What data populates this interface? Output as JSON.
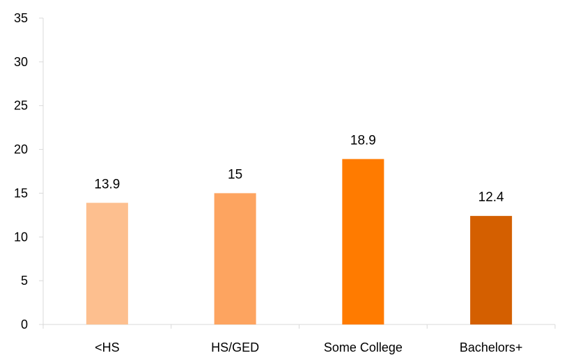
{
  "chart_data": {
    "type": "bar",
    "categories": [
      "<HS",
      "HS/GED",
      "Some College",
      "Bachelors+"
    ],
    "values": [
      13.9,
      15,
      18.9,
      12.4
    ],
    "data_labels": [
      "13.9",
      "15",
      "18.9",
      "12.4"
    ],
    "colors": [
      "#FDBF8F",
      "#FDA460",
      "#FF7B00",
      "#D45F00"
    ],
    "ylim": [
      0,
      35
    ],
    "yticks": [
      "0",
      "5",
      "10",
      "15",
      "20",
      "25",
      "30",
      "35"
    ],
    "grid": false,
    "legend": "none",
    "axis_color": "#D9D9D9"
  }
}
